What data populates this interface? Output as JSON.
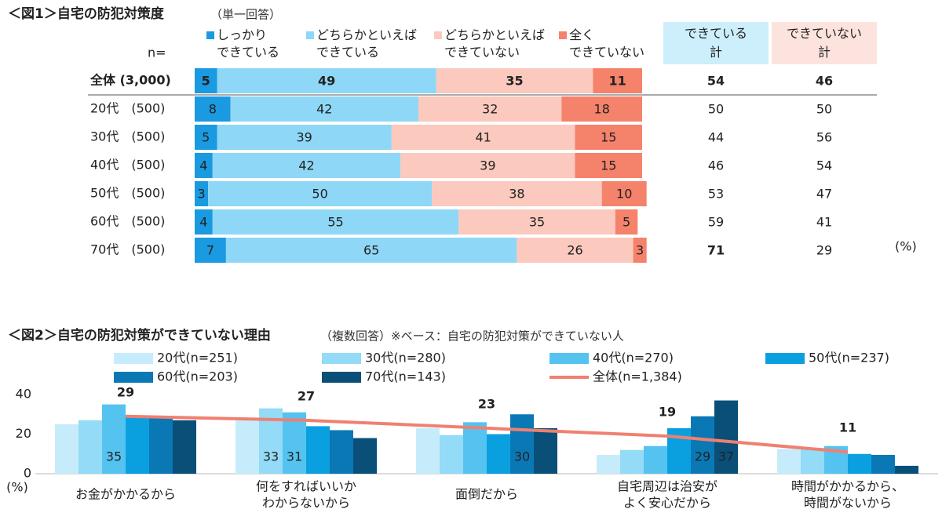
{
  "chart_data": [
    {
      "type": "stacked_bar_horizontal",
      "title": "＜図1＞自宅の防犯対策度",
      "subtitle": "（単一回答）",
      "n_label": "n=",
      "unit": "(%)",
      "categories": [
        "全体 (3,000)",
        "20代　(500)",
        "30代　(500)",
        "40代　(500)",
        "50代　(500)",
        "60代　(500)",
        "70代　(500)"
      ],
      "xlim": [
        0,
        100
      ],
      "bold_rows": [
        0
      ],
      "series": [
        {
          "name": "しっかり\nできている",
          "color": "#1a9ae0",
          "label_color": "#ffffff",
          "values": [
            5,
            8,
            5,
            4,
            3,
            4,
            7
          ]
        },
        {
          "name": "どちらかといえば\nできている",
          "color": "#8fd7f7",
          "label_color": "#555555",
          "values": [
            49,
            42,
            39,
            42,
            50,
            55,
            65
          ]
        },
        {
          "name": "どちらかといえば\nできていない",
          "color": "#fbc9bd",
          "label_color": "#555555",
          "values": [
            35,
            32,
            41,
            39,
            38,
            35,
            26
          ]
        },
        {
          "name": "全く\nできていない",
          "color": "#f5826b",
          "label_color": "#ffffff",
          "values": [
            11,
            18,
            15,
            15,
            10,
            5,
            3
          ]
        }
      ],
      "totals": [
        {
          "name": "できている\n計",
          "background": "#cdeefb",
          "header_color": "#8fa6b4",
          "values": [
            54,
            50,
            44,
            46,
            53,
            59,
            71
          ],
          "colors": [
            "#222222",
            "#222222",
            "#f07a62",
            "#f07a62",
            "#222222",
            "#222222",
            "#1a8de0"
          ]
        },
        {
          "name": "できていない\n計",
          "background": "#fde3de",
          "header_color": "#b8a09c",
          "values": [
            46,
            50,
            56,
            54,
            47,
            41,
            29
          ],
          "colors": [
            "#222222",
            "#222222",
            "#222222",
            "#222222",
            "#222222",
            "#222222",
            "#222222"
          ]
        }
      ]
    },
    {
      "type": "bar_line",
      "title": "＜図2＞自宅の防犯対策ができていない理由",
      "subtitle": "（複数回答）※ベース：自宅の防犯対策ができていない人",
      "y_unit": "(%)",
      "categories": [
        "お金がかかるから",
        "何をすればいいか\nわからないから",
        "面倒だから",
        "自宅周辺は治安が\nよく安心だから",
        "時間がかかるから、\n時間がないから"
      ],
      "ylim": [
        0,
        40
      ],
      "yticks": [
        0,
        20,
        40
      ],
      "grid": false,
      "series": [
        {
          "name": "20代(n=251)",
          "color": "#c6ecfb",
          "values": [
            25,
            27,
            23,
            9.5,
            12.5
          ],
          "show_labels": [
            false,
            false,
            false,
            false,
            false
          ]
        },
        {
          "name": "30代(n=280)",
          "color": "#93dbf7",
          "values": [
            27,
            33,
            19.5,
            12,
            13
          ],
          "show_labels": [
            false,
            true,
            false,
            false,
            false
          ]
        },
        {
          "name": "40代(n=270)",
          "color": "#55c3f0",
          "values": [
            35,
            31,
            26,
            14,
            14
          ],
          "show_labels": [
            true,
            true,
            false,
            false,
            false
          ]
        },
        {
          "name": "50代(n=237)",
          "color": "#0aa0e0",
          "values": [
            28.5,
            24,
            20,
            23,
            10
          ],
          "show_labels": [
            false,
            false,
            false,
            false,
            false
          ]
        },
        {
          "name": "60代(n=203)",
          "color": "#0a78b5",
          "values": [
            29,
            22,
            30,
            29,
            9.5
          ],
          "show_labels": [
            false,
            false,
            true,
            true,
            false
          ]
        },
        {
          "name": "70代(n=143)",
          "color": "#094f78",
          "values": [
            27,
            18,
            23,
            37,
            4
          ],
          "show_labels": [
            false,
            false,
            false,
            true,
            false
          ]
        },
        {
          "name": "全体(n=1,384)",
          "type": "line",
          "color": "#f08070",
          "values": [
            29,
            27,
            23,
            19,
            11
          ]
        }
      ]
    }
  ]
}
